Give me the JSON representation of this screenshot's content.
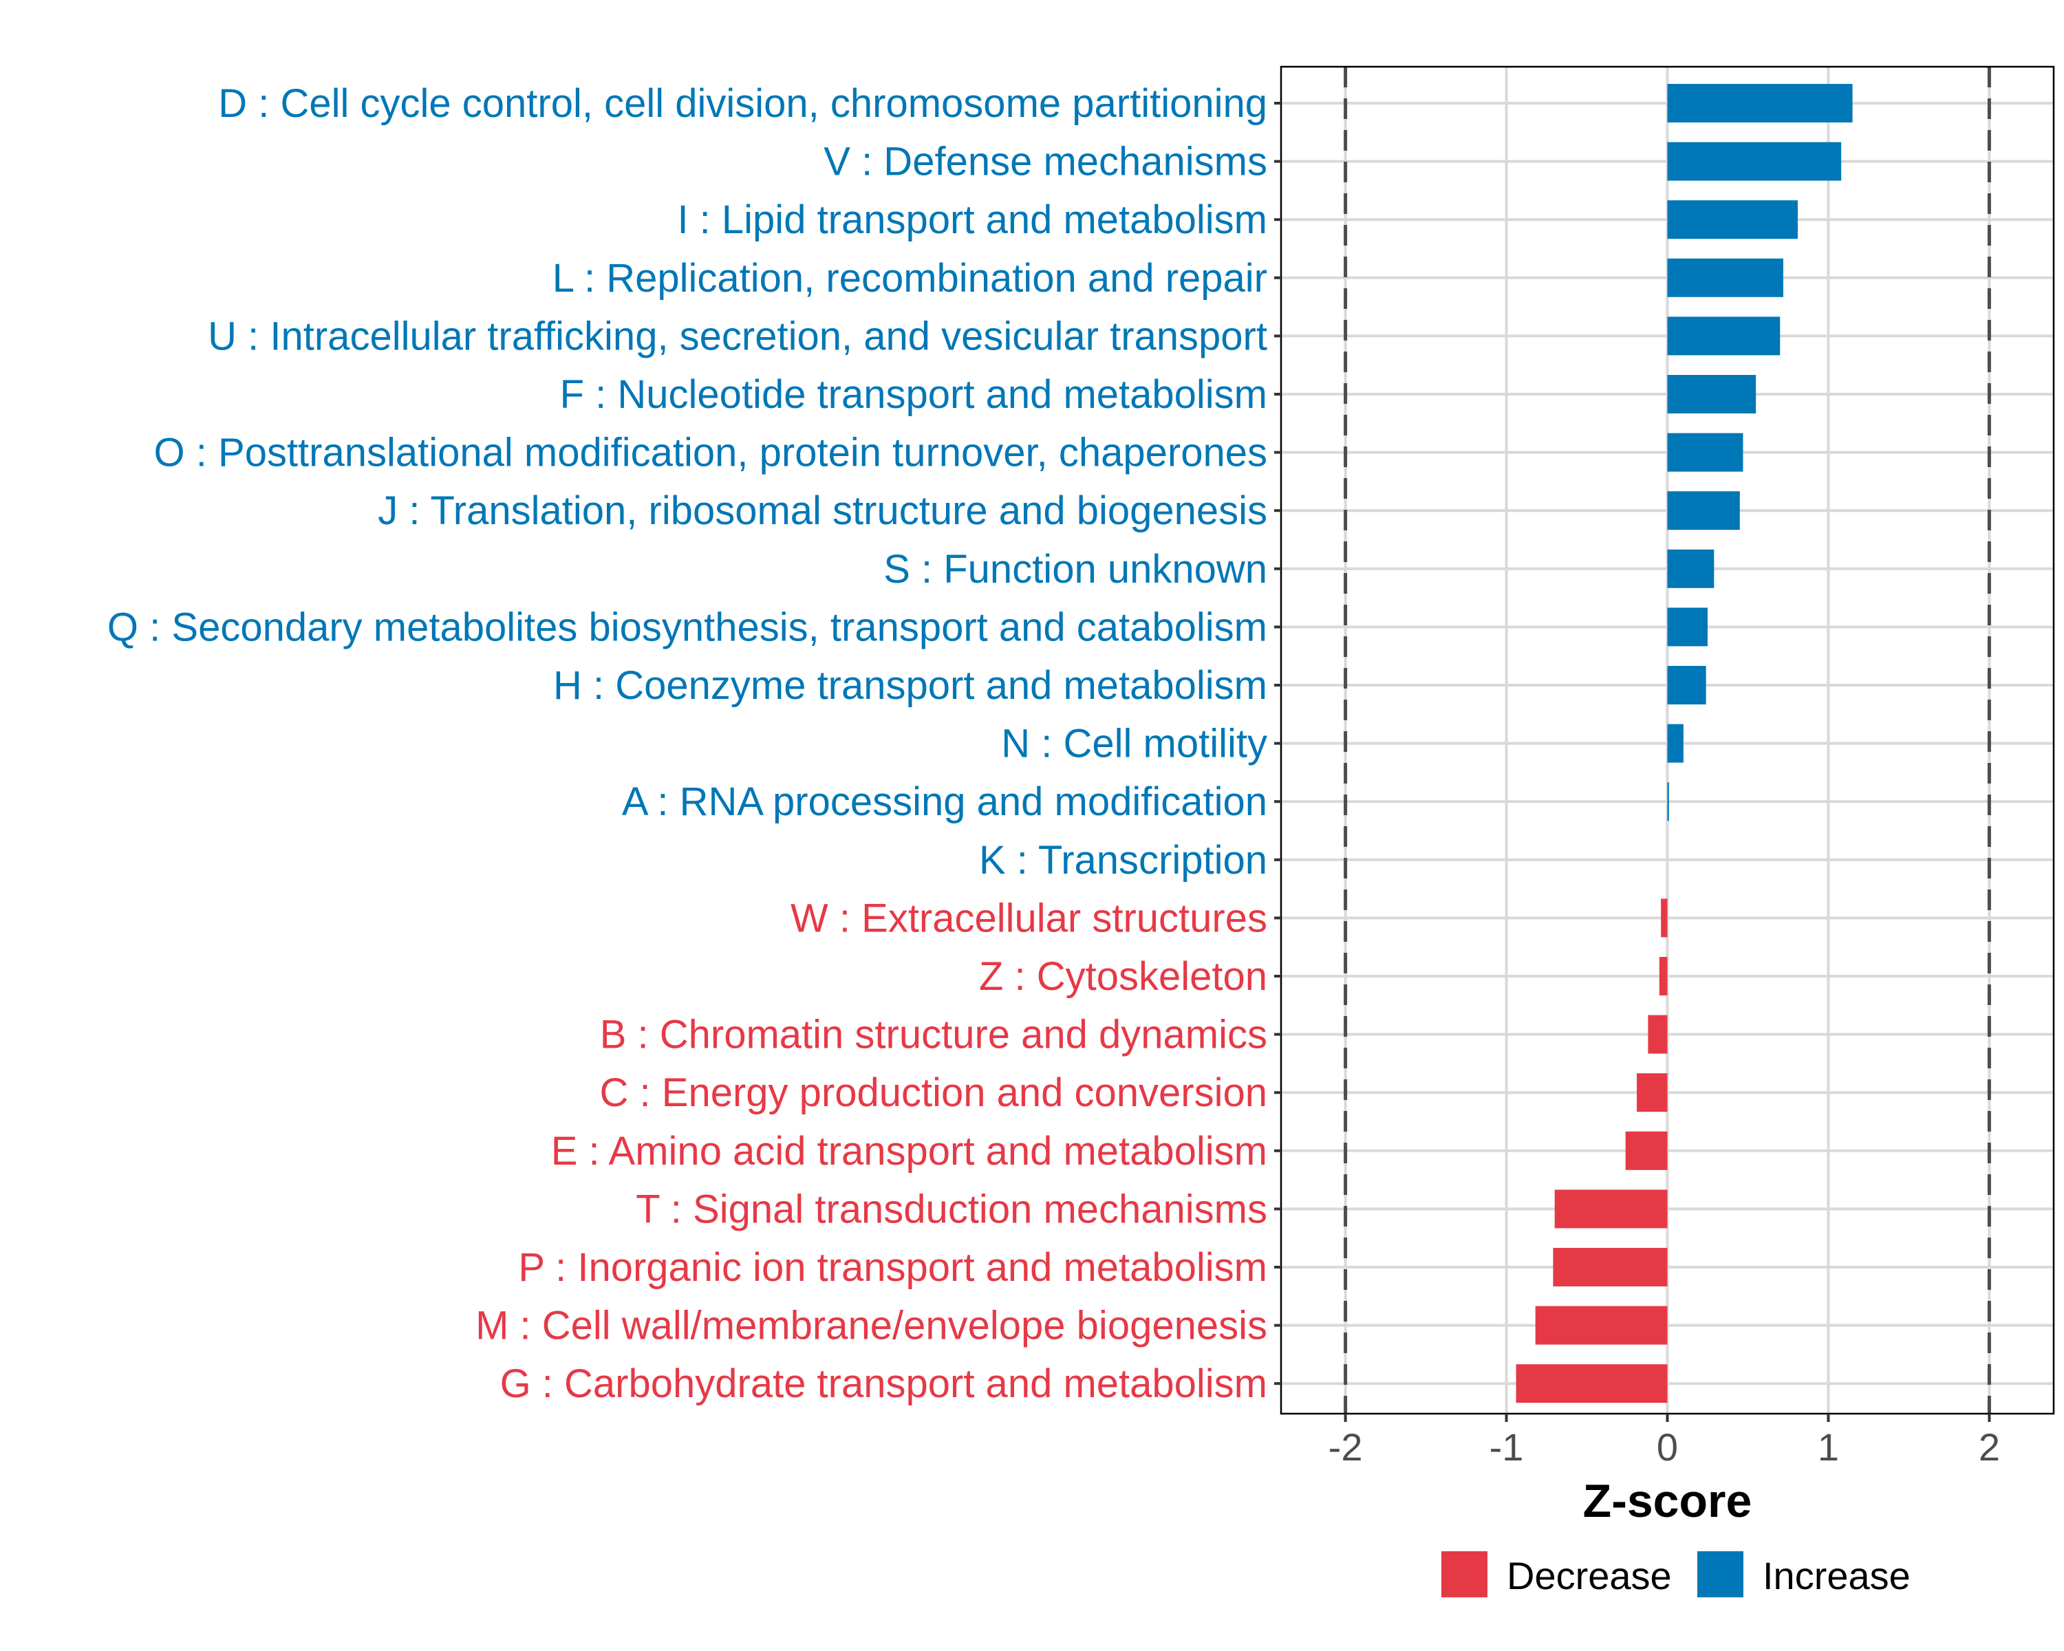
{
  "chart_data": {
    "type": "bar",
    "orientation": "horizontal",
    "title": "",
    "xlabel": "Z-score",
    "ylabel": "",
    "xlim": [
      -2.4,
      2.4
    ],
    "xticks": [
      -2,
      -1,
      0,
      1,
      2
    ],
    "xtick_labels": [
      "-2",
      "-1",
      "0",
      "1",
      "2"
    ],
    "reference_lines": [
      -2,
      2
    ],
    "reference_line_style": "dashed",
    "grid": true,
    "legend": {
      "position": "bottom",
      "entries": [
        {
          "name": "Decrease",
          "color": "#E63946"
        },
        {
          "name": "Increase",
          "color": "#0077B6"
        }
      ]
    },
    "categories": [
      {
        "label": "D : Cell cycle control, cell division, chromosome partitioning",
        "value": 1.15,
        "group": "Increase"
      },
      {
        "label": "V : Defense mechanisms",
        "value": 1.08,
        "group": "Increase"
      },
      {
        "label": "I : Lipid transport and metabolism",
        "value": 0.81,
        "group": "Increase"
      },
      {
        "label": "L : Replication, recombination and repair",
        "value": 0.72,
        "group": "Increase"
      },
      {
        "label": "U : Intracellular trafficking, secretion, and vesicular transport",
        "value": 0.7,
        "group": "Increase"
      },
      {
        "label": "F : Nucleotide transport and metabolism",
        "value": 0.55,
        "group": "Increase"
      },
      {
        "label": "O : Posttranslational modification, protein turnover, chaperones",
        "value": 0.47,
        "group": "Increase"
      },
      {
        "label": "J : Translation, ribosomal structure and biogenesis",
        "value": 0.45,
        "group": "Increase"
      },
      {
        "label": "S : Function unknown",
        "value": 0.29,
        "group": "Increase"
      },
      {
        "label": "Q : Secondary metabolites biosynthesis, transport and catabolism",
        "value": 0.25,
        "group": "Increase"
      },
      {
        "label": "H : Coenzyme transport and metabolism",
        "value": 0.24,
        "group": "Increase"
      },
      {
        "label": "N : Cell motility",
        "value": 0.1,
        "group": "Increase"
      },
      {
        "label": "A : RNA processing and modification",
        "value": 0.01,
        "group": "Increase"
      },
      {
        "label": "K : Transcription",
        "value": 0.0,
        "group": "Increase"
      },
      {
        "label": "W : Extracellular structures",
        "value": -0.04,
        "group": "Decrease"
      },
      {
        "label": "Z : Cytoskeleton",
        "value": -0.05,
        "group": "Decrease"
      },
      {
        "label": "B : Chromatin structure and dynamics",
        "value": -0.12,
        "group": "Decrease"
      },
      {
        "label": "C : Energy production and conversion",
        "value": -0.19,
        "group": "Decrease"
      },
      {
        "label": "E : Amino acid transport and metabolism",
        "value": -0.26,
        "group": "Decrease"
      },
      {
        "label": "T : Signal transduction mechanisms",
        "value": -0.7,
        "group": "Decrease"
      },
      {
        "label": "P : Inorganic ion transport and metabolism",
        "value": -0.71,
        "group": "Decrease"
      },
      {
        "label": "M : Cell wall/membrane/envelope biogenesis",
        "value": -0.82,
        "group": "Decrease"
      },
      {
        "label": "G : Carbohydrate transport and metabolism",
        "value": -0.94,
        "group": "Decrease"
      }
    ],
    "colors": {
      "Increase": "#0077B6",
      "Decrease": "#E63946",
      "grid": "#D9D9D9",
      "reference_line": "#4D4D4D",
      "panel_border": "#000000"
    }
  }
}
